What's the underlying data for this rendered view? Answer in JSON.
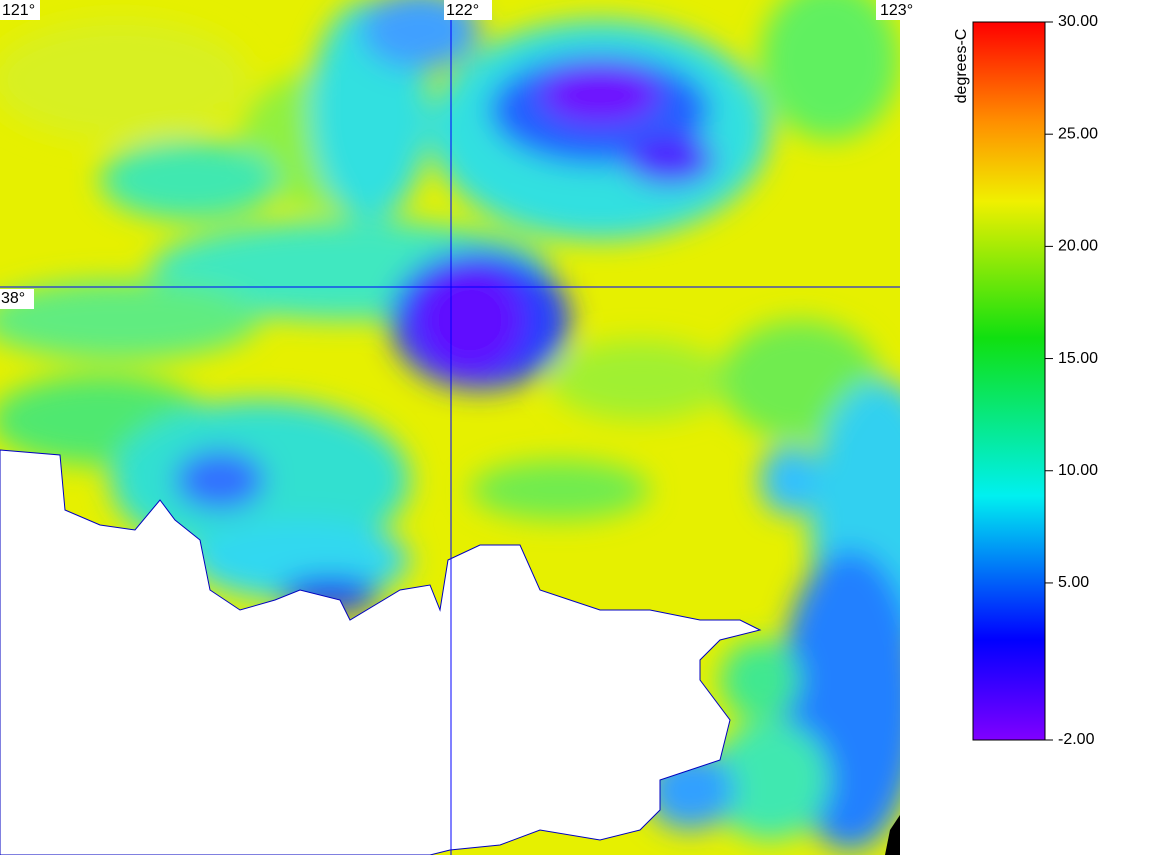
{
  "map": {
    "lon_labels": [
      "121°",
      "122°",
      "123°"
    ],
    "lat_labels": [
      "38°"
    ]
  },
  "colorbar": {
    "title": "degrees-C",
    "lim": [
      -2,
      30
    ],
    "ticks": [
      {
        "value": 30,
        "label": "30.00"
      },
      {
        "value": 25,
        "label": "25.00"
      },
      {
        "value": 20,
        "label": "20.00"
      },
      {
        "value": 15,
        "label": "15.00"
      },
      {
        "value": 10,
        "label": "10.00"
      },
      {
        "value": 5,
        "label": "5.00"
      },
      {
        "value": -2,
        "label": "-2.00"
      }
    ]
  }
}
